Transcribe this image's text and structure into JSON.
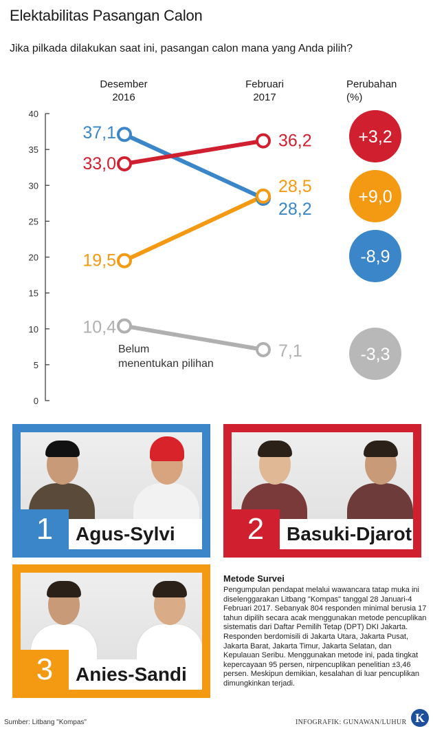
{
  "title": "Elektabilitas Pasangan Calon",
  "subtitle": "Jika pilkada dilakukan saat ini, pasangan calon mana yang Anda pilih?",
  "columns": {
    "dec": [
      "Desember",
      "2016"
    ],
    "feb": [
      "Februari",
      "2017"
    ],
    "change": [
      "Perubahan",
      "(%)"
    ]
  },
  "chart_data": {
    "type": "line",
    "x": [
      "Desember 2016",
      "Februari 2017"
    ],
    "ylim": [
      0,
      40
    ],
    "yticks": [
      "0",
      "5",
      "10",
      "15",
      "20",
      "25",
      "30",
      "35",
      "40"
    ],
    "grid": false,
    "series": [
      {
        "key": "agus",
        "values": [
          37.1,
          28.2
        ],
        "labels": [
          "37,1",
          "28,2"
        ],
        "change": "-8,9",
        "color": "#3a86c8"
      },
      {
        "key": "basuki",
        "values": [
          33.0,
          36.2
        ],
        "labels": [
          "33,0",
          "36,2"
        ],
        "change": "+3,2",
        "color": "#d0202f"
      },
      {
        "key": "anies",
        "values": [
          19.5,
          28.5
        ],
        "labels": [
          "19,5",
          "28,5"
        ],
        "change": "+9,0",
        "color": "#f39a12"
      },
      {
        "key": "belum",
        "name": "Belum menentukan pilihan",
        "name_lines": [
          "Belum",
          "menentukan pilihan"
        ],
        "values": [
          10.4,
          7.1
        ],
        "labels": [
          "10,4",
          "7,1"
        ],
        "change": "-3,3",
        "color": "#b0b0b0"
      }
    ]
  },
  "candidates": [
    {
      "number": "1",
      "name": "Agus-Sylvi",
      "color": "#3a86c8"
    },
    {
      "number": "2",
      "name": "Basuki-Djarot",
      "color": "#d0202f"
    },
    {
      "number": "3",
      "name": "Anies-Sandi",
      "color": "#f39a12"
    }
  ],
  "metode": {
    "title": "Metode Survei",
    "text": "Pengumpulan pendapat melalui wawancara tatap muka ini diselenggarakan Litbang \"Kompas\" tanggal 28 Januari-4 Februari 2017. Sebanyak 804 responden minimal berusia 17 tahun dipilih secara acak menggunakan metode pencuplikan sistematis dari Daftar Pemilih Tetap (DPT) DKI Jakarta. Responden berdomisili di Jakarta Utara, Jakarta Pusat, Jakarta Barat, Jakarta Timur, Jakarta Selatan, dan Kepulauan Seribu. Menggunakan metode ini, pada tingkat kepercayaan 95 persen, nirpencuplikan penelitian ±3,46 persen. Meskipun demikian, kesalahan di luar pencuplikan dimungkinkan terjadi."
  },
  "footer": {
    "source": "Sumber: Litbang \"Kompas\"",
    "credit": "INFOGRAFIK: GUNAWAN/LUHUR",
    "logo": "K"
  }
}
